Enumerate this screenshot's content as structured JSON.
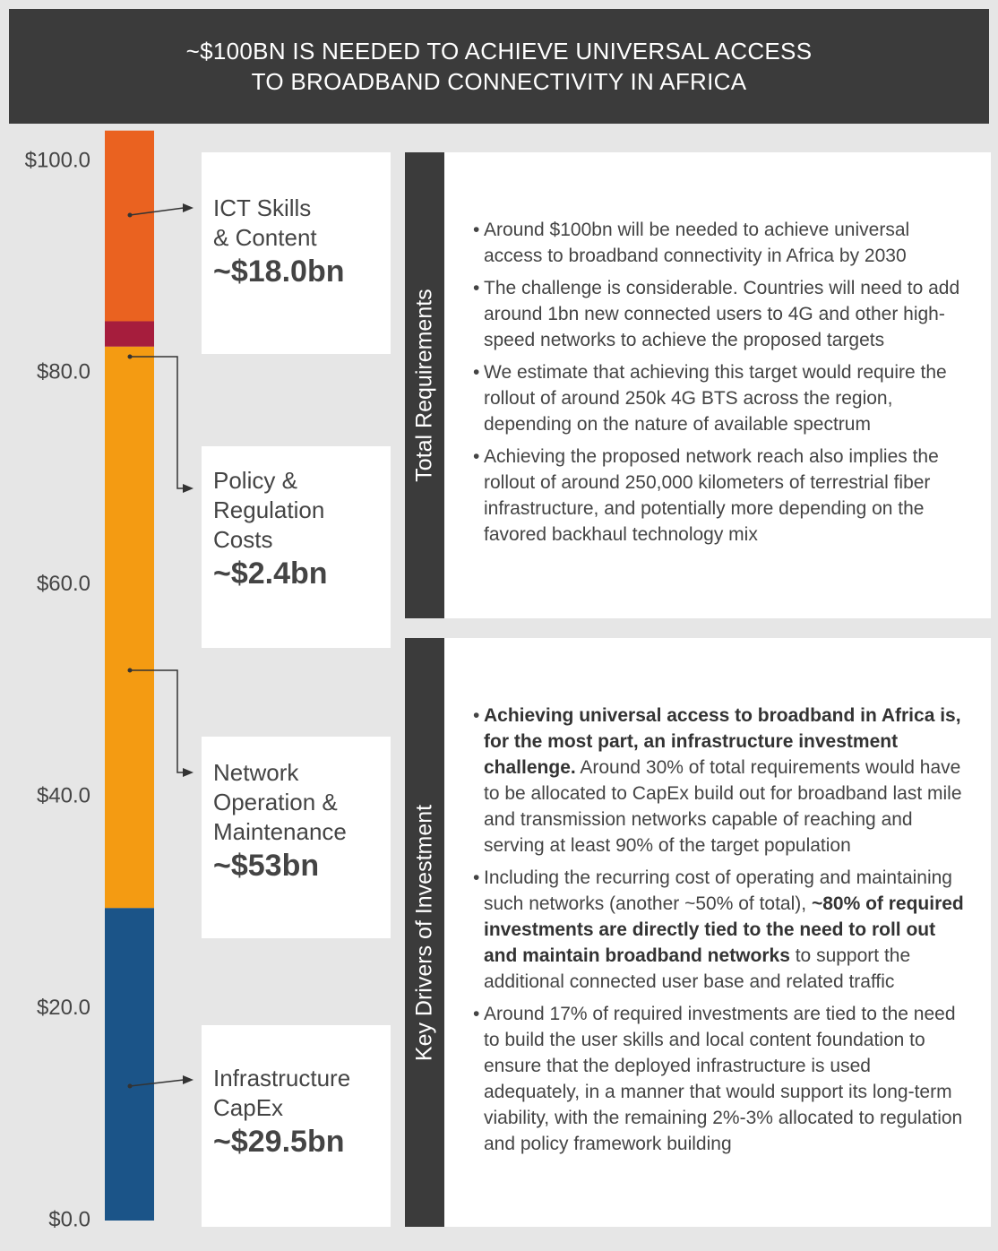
{
  "chart_data": {
    "type": "stacked-bar",
    "title": "~$100BN IS NEEDED TO ACHIEVE UNIVERSAL ACCESS\nTO BROADBAND CONNECTIVITY IN AFRICA",
    "series": [
      {
        "name": "Infrastructure\nCapEx",
        "color": "#1b5488",
        "values": [
          29.5
        ],
        "value_labels": [
          "~$29.5bn"
        ]
      },
      {
        "name": "Network\nOperation &\nMaintenance",
        "color": "#f49b12",
        "values": [
          53
        ],
        "value_labels": [
          "~$53bn"
        ]
      },
      {
        "name": "Policy &\nRegulation\nCosts",
        "color": "#a61d3d",
        "values": [
          2.4
        ],
        "value_labels": [
          "~$2.4bn"
        ]
      },
      {
        "name": "ICT Skills\n& Content",
        "color": "#ea6220",
        "values": [
          18.0
        ],
        "value_labels": [
          "~$18.0bn"
        ]
      }
    ],
    "ylim": [
      0,
      103
    ],
    "yticks": [
      {
        "value": 0,
        "label": "$0.0"
      },
      {
        "value": 20,
        "label": "$20.0"
      },
      {
        "value": 40,
        "label": "$40.0"
      },
      {
        "value": 60,
        "label": "$60.0"
      },
      {
        "value": 80,
        "label": "$80.0"
      },
      {
        "value": 100,
        "label": "$100.0"
      }
    ]
  },
  "panels": [
    {
      "title": "Total Requirements",
      "bullets": [
        [
          {
            "text": "Around $100bn will be needed to achieve universal access to broadband connectivity in Africa by 2030"
          }
        ],
        [
          {
            "text": "The challenge is considerable. Countries will need to add around 1bn new connected users to 4G and other high-speed networks to achieve the proposed targets"
          }
        ],
        [
          {
            "text": "We estimate that achieving this target would require the rollout of around 250k 4G BTS across the region, depending on the nature of available spectrum"
          }
        ],
        [
          {
            "text": "Achieving the proposed network reach also implies the rollout of around 250,000 kilometers of terrestrial fiber infrastructure, and potentially more depending on the favored backhaul technology mix"
          }
        ]
      ]
    },
    {
      "title": "Key Drivers of Investment",
      "bullets": [
        [
          {
            "text": "Achieving universal access to broadband in Africa is, for the most part, an infrastructure investment challenge.",
            "bold": true
          },
          {
            "text": " Around 30% of total requirements would have to be allocated to CapEx build out for broadband last mile and transmission networks capable of reaching and serving at least 90% of the target population"
          }
        ],
        [
          {
            "text": "Including the recurring cost of operating and maintaining such networks (another ~50% of total), "
          },
          {
            "text": "~80% of required investments are directly tied to the need to roll out and maintain broadband networks",
            "bold": true
          },
          {
            "text": " to support the additional connected user base and related traffic"
          }
        ],
        [
          {
            "text": "Around 17% of required investments are tied to the need to build the user skills and local content foundation to ensure that the deployed infrastructure is used adequately, in a manner that would support its long-term viability, with the remaining 2%-3% allocated to regulation and policy framework building"
          }
        ]
      ]
    }
  ]
}
